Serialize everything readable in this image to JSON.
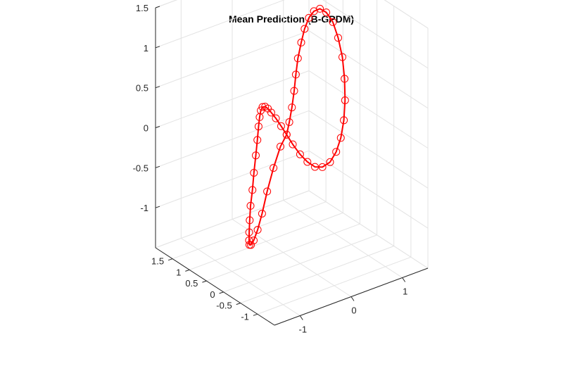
{
  "chart_data": {
    "type": "line3d",
    "title": "Mean Prediction (B-GPDM)",
    "xlabel": "",
    "ylabel": "",
    "zlabel": "",
    "view": "3d-default",
    "grid": true,
    "xlim": [
      -1.5,
      1.5
    ],
    "ylim": [
      -1.5,
      2.0
    ],
    "zlim": [
      -1.5,
      1.5
    ],
    "x_ticks": [
      "-1",
      "0",
      "1"
    ],
    "x_tick_values": [
      -1,
      0,
      1
    ],
    "y_ticks": [
      "-1",
      "-0.5",
      "0",
      "0.5",
      "1",
      "1.5"
    ],
    "y_tick_values": [
      -1,
      -0.5,
      0,
      0.5,
      1,
      1.5
    ],
    "z_ticks": [
      "-1",
      "-0.5",
      "0",
      "0.5",
      "1",
      "1.5"
    ],
    "z_tick_values": [
      -1,
      -0.5,
      0,
      0.5,
      1,
      1.5
    ],
    "series_color": "#ff0000",
    "marker": "circle",
    "series": [
      {
        "name": "",
        "x": [
          0.0,
          0.12,
          0.25,
          0.38,
          0.5,
          0.62,
          0.75,
          0.87,
          0.98,
          1.08,
          1.17,
          1.24,
          1.29,
          1.3,
          1.29,
          1.24,
          1.17,
          1.08,
          0.98,
          0.87,
          0.75,
          0.62,
          0.5,
          0.38,
          0.25,
          0.12,
          0.0,
          -0.12,
          -0.25,
          -0.38,
          -0.5,
          -0.62,
          -0.75,
          -0.87,
          -0.98,
          -1.08,
          -1.17,
          -1.24,
          -1.29,
          -1.3,
          -1.29,
          -1.24,
          -1.17,
          -1.08,
          -0.98,
          -0.87,
          -0.75,
          -0.62,
          -0.5,
          -0.38,
          -0.25,
          -0.12
        ],
        "y": [
          0.4,
          0.5,
          0.62,
          0.75,
          0.88,
          1.0,
          1.1,
          1.18,
          1.22,
          1.22,
          1.18,
          1.1,
          0.98,
          0.84,
          0.7,
          0.56,
          0.44,
          0.34,
          0.28,
          0.25,
          0.25,
          0.28,
          0.32,
          0.36,
          0.38,
          0.4,
          0.4,
          0.38,
          0.34,
          0.28,
          0.2,
          0.1,
          -0.02,
          -0.15,
          -0.28,
          -0.4,
          -0.5,
          -0.56,
          -0.58,
          -0.55,
          -0.48,
          -0.38,
          -0.26,
          -0.12,
          0.02,
          0.14,
          0.24,
          0.32,
          0.37,
          0.4,
          0.41,
          0.4
        ],
        "z": [
          0.0,
          0.1,
          0.22,
          0.36,
          0.5,
          0.64,
          0.78,
          0.9,
          1.0,
          1.06,
          1.08,
          1.04,
          0.94,
          0.78,
          0.58,
          0.36,
          0.14,
          -0.06,
          -0.24,
          -0.38,
          -0.48,
          -0.52,
          -0.5,
          -0.42,
          -0.3,
          -0.15,
          0.0,
          0.14,
          0.28,
          0.4,
          0.5,
          0.58,
          0.64,
          0.66,
          0.64,
          0.58,
          0.46,
          0.3,
          0.1,
          -0.12,
          -0.34,
          -0.56,
          -0.76,
          -0.92,
          -1.04,
          -1.1,
          -1.1,
          -1.02,
          -0.86,
          -0.62,
          -0.36,
          -0.12
        ]
      }
    ]
  }
}
